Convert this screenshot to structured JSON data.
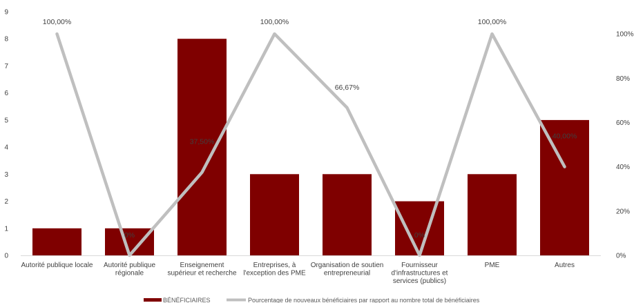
{
  "chart_data": {
    "type": "bar",
    "categories": [
      [
        "Autorité publique locale"
      ],
      [
        "Autorité publique",
        "régionale"
      ],
      [
        "Enseignement",
        "supérieur et recherche"
      ],
      [
        "Entreprises, à",
        "l'exception des PME"
      ],
      [
        "Organisation de soutien",
        "entrepreneurial"
      ],
      [
        "Fournisseur",
        "d'infrastructures et",
        "services (publics)"
      ],
      [
        "PME"
      ],
      [
        "Autres"
      ]
    ],
    "series": [
      {
        "name": "BÉNÉFICIAIRES",
        "type": "bar",
        "axis": "left",
        "color": "#7f0000",
        "values": [
          1,
          1,
          8,
          3,
          3,
          2,
          3,
          5
        ]
      },
      {
        "name": "Pourcentage de nouveaux bénéficiaires par rapport au nombre total de bénéficiaires",
        "type": "line",
        "axis": "right",
        "color": "#bfbfbf",
        "values": [
          1.0,
          0.0,
          0.375,
          1.0,
          0.6667,
          0.0,
          1.0,
          0.4
        ],
        "labels": [
          "100,00%",
          "0%",
          "37,50%",
          "100,00%",
          "66,67%",
          "0%",
          "100,00%",
          "40,00%"
        ]
      }
    ],
    "y_left": {
      "ylim": [
        0,
        9
      ],
      "ticks": [
        "0",
        "1",
        "2",
        "3",
        "4",
        "5",
        "6",
        "7",
        "8",
        "9"
      ]
    },
    "y_right": {
      "ylim": [
        0,
        1.1
      ],
      "ticks": [
        "0%",
        "20%",
        "40%",
        "60%",
        "80%",
        "100%"
      ]
    },
    "legend": {
      "placement": "bottom"
    },
    "grid": false
  }
}
